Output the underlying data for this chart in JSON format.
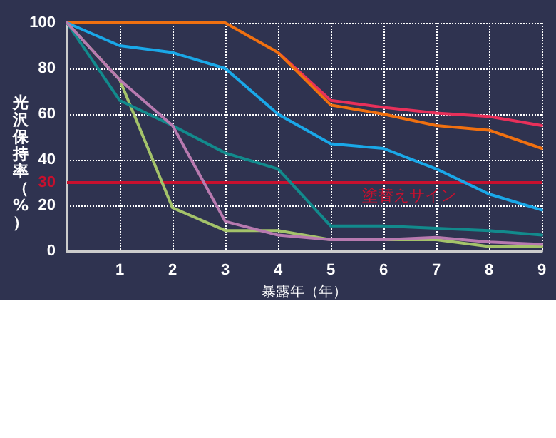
{
  "chart_data": {
    "type": "line",
    "xlabel": "暴露年（年）",
    "ylabel": "光沢保持率（%）",
    "x": [
      0,
      1,
      2,
      3,
      4,
      5,
      6,
      7,
      8,
      9
    ],
    "xlim": [
      0,
      9
    ],
    "xticks": [
      1,
      2,
      3,
      4,
      5,
      6,
      7,
      8,
      9
    ],
    "ylim": [
      0,
      100
    ],
    "yticks": [
      0,
      20,
      30,
      40,
      60,
      80,
      100
    ],
    "series": [
      {
        "color": "#e8305a",
        "values": [
          null,
          null,
          null,
          null,
          87,
          66,
          63,
          60.5,
          59,
          55
        ]
      },
      {
        "color": "#f07010",
        "values": [
          100,
          100,
          100,
          100,
          87,
          64,
          60,
          55,
          53,
          45
        ]
      },
      {
        "color": "#1aa8e8",
        "values": [
          100,
          90,
          87,
          80,
          60,
          47,
          45,
          36,
          25,
          18
        ]
      },
      {
        "color": "#a4c36a",
        "values": [
          100,
          75,
          19,
          9,
          9,
          5,
          5,
          5,
          2,
          2
        ]
      },
      {
        "color": "#128a8c",
        "values": [
          100,
          66,
          55,
          43,
          36,
          11,
          11,
          10,
          9,
          7
        ]
      },
      {
        "color": "#b87ab0",
        "values": [
          100,
          75,
          55,
          13,
          7,
          5,
          5,
          6,
          4,
          3
        ]
      }
    ],
    "ref_lines": [
      {
        "axis": "y",
        "value": 30,
        "label": "塗替えサイン",
        "color": "#c8102e"
      }
    ],
    "grid": true,
    "marker": "none",
    "line_style": "solid"
  }
}
